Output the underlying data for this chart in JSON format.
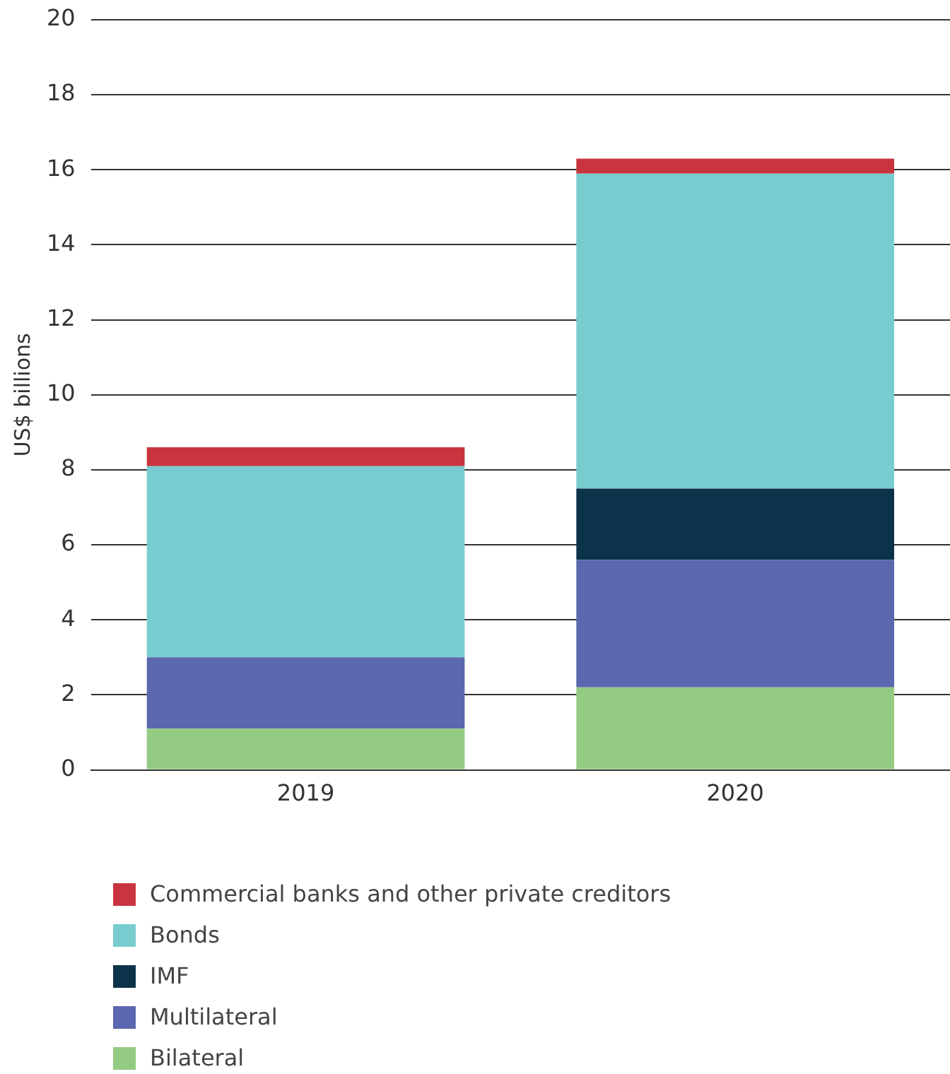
{
  "chart_data": {
    "type": "bar",
    "stacked": true,
    "ylabel": "US$ billions",
    "categories": [
      "2019",
      "2020"
    ],
    "series": [
      {
        "name": "Bilateral",
        "color": "#93cb82",
        "values": [
          1.1,
          2.2
        ]
      },
      {
        "name": "Multilateral",
        "color": "#5b67ae",
        "values": [
          1.9,
          3.4
        ]
      },
      {
        "name": "IMF",
        "color": "#0b3349",
        "values": [
          0,
          1.9
        ]
      },
      {
        "name": "Bonds",
        "color": "#78cccf",
        "values": [
          5.1,
          8.4
        ]
      },
      {
        "name": "Commercial banks and other private creditors",
        "color": "#c9353e",
        "values": [
          0.5,
          0.4
        ]
      }
    ],
    "ylim": [
      0,
      20
    ],
    "yticks": [
      0,
      2,
      4,
      6,
      8,
      10,
      12,
      14,
      16,
      18,
      20
    ],
    "grid": "y",
    "legend": "bottom left"
  }
}
